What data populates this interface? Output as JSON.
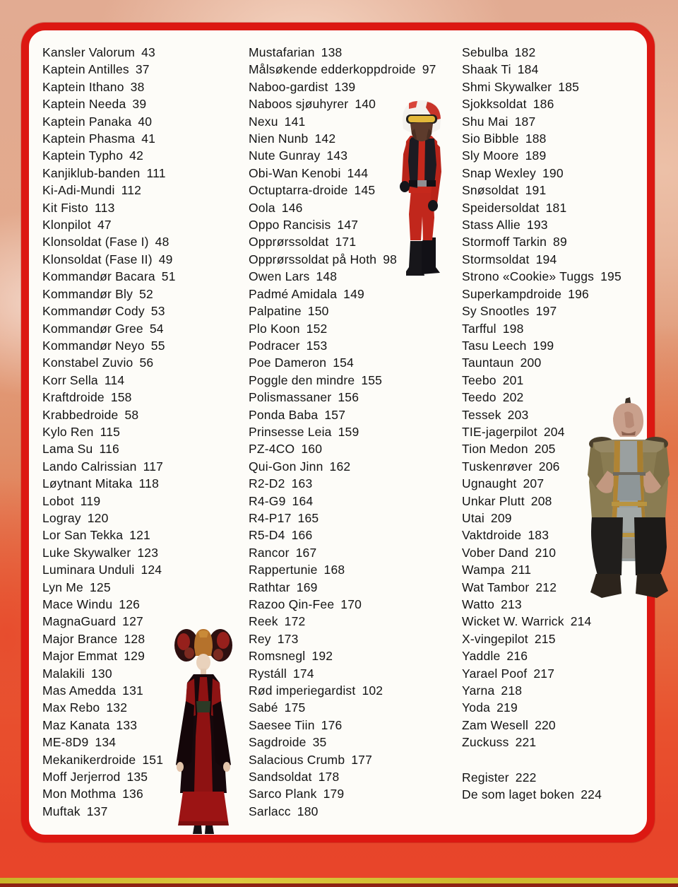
{
  "page": {
    "description": "Norwegian Star Wars encyclopedia index page",
    "colors": {
      "frame_red": "#dc1812",
      "paper": "#fdfcf8",
      "text": "#141414",
      "backdrop_top": "#e2ab92",
      "backdrop_bottom": "#e8452a",
      "bottom_stripe_yellow": "#d4bf32",
      "bottom_stripe_maroon": "#8e2214"
    }
  },
  "figures": [
    {
      "name": "rebel-pilot-red-flightsuit"
    },
    {
      "name": "queen-amidala-red-black-gown"
    },
    {
      "name": "unkar-plutt-bulky-alien"
    }
  ],
  "index": {
    "columns": [
      {
        "entries": [
          {
            "name": "Kansler Valorum",
            "page": "43"
          },
          {
            "name": "Kaptein Antilles",
            "page": "37"
          },
          {
            "name": "Kaptein Ithano",
            "page": "38"
          },
          {
            "name": "Kaptein Needa",
            "page": "39"
          },
          {
            "name": "Kaptein Panaka",
            "page": "40"
          },
          {
            "name": "Kaptein Phasma",
            "page": "41"
          },
          {
            "name": "Kaptein Typho",
            "page": "42"
          },
          {
            "name": "Kanjiklub-banden",
            "page": "111"
          },
          {
            "name": "Ki-Adi-Mundi",
            "page": "112"
          },
          {
            "name": "Kit Fisto",
            "page": "113"
          },
          {
            "name": "Klonpilot",
            "page": "47"
          },
          {
            "name": "Klonsoldat (Fase I)",
            "page": "48"
          },
          {
            "name": "Klonsoldat (Fase II)",
            "page": "49"
          },
          {
            "name": "Kommandør Bacara",
            "page": "51"
          },
          {
            "name": "Kommandør Bly",
            "page": "52"
          },
          {
            "name": "Kommandør Cody",
            "page": "53"
          },
          {
            "name": "Kommandør Gree",
            "page": "54"
          },
          {
            "name": "Kommandør Neyo",
            "page": "55"
          },
          {
            "name": "Konstabel Zuvio",
            "page": "56"
          },
          {
            "name": "Korr Sella",
            "page": "114"
          },
          {
            "name": "Kraftdroide",
            "page": "158"
          },
          {
            "name": "Krabbedroide",
            "page": "58"
          },
          {
            "name": "Kylo Ren",
            "page": "115"
          },
          {
            "name": "Lama Su",
            "page": "116"
          },
          {
            "name": "Lando Calrissian",
            "page": "117"
          },
          {
            "name": "Løytnant Mitaka",
            "page": "118"
          },
          {
            "name": "Lobot",
            "page": "119"
          },
          {
            "name": "Logray",
            "page": "120"
          },
          {
            "name": "Lor San Tekka",
            "page": "121"
          },
          {
            "name": "Luke Skywalker",
            "page": "123"
          },
          {
            "name": "Luminara Unduli",
            "page": "124"
          },
          {
            "name": "Lyn Me",
            "page": "125"
          },
          {
            "name": "Mace Windu",
            "page": "126"
          },
          {
            "name": "MagnaGuard",
            "page": "127"
          },
          {
            "name": "Major Brance",
            "page": "128"
          },
          {
            "name": "Major Emmat",
            "page": "129"
          },
          {
            "name": "Malakili",
            "page": "130"
          },
          {
            "name": "Mas Amedda",
            "page": "131"
          },
          {
            "name": "Max Rebo",
            "page": "132"
          },
          {
            "name": "Maz Kanata",
            "page": "133"
          },
          {
            "name": "ME-8D9",
            "page": "134"
          },
          {
            "name": "Mekanikerdroide",
            "page": "151"
          },
          {
            "name": "Moff Jerjerrod",
            "page": "135"
          },
          {
            "name": "Mon Mothma",
            "page": "136"
          },
          {
            "name": "Muftak",
            "page": "137"
          }
        ]
      },
      {
        "entries": [
          {
            "name": "Mustafarian",
            "page": "138"
          },
          {
            "name": "Målsøkende edderkoppdroide",
            "page": "97"
          },
          {
            "name": "Naboo-gardist",
            "page": "139"
          },
          {
            "name": "Naboos sjøuhyrer",
            "page": "140"
          },
          {
            "name": "Nexu",
            "page": "141"
          },
          {
            "name": "Nien Nunb",
            "page": "142"
          },
          {
            "name": "Nute Gunray",
            "page": "143"
          },
          {
            "name": "Obi-Wan Kenobi",
            "page": "144"
          },
          {
            "name": "Octuptarra-droide",
            "page": "145"
          },
          {
            "name": "Oola",
            "page": "146"
          },
          {
            "name": "Oppo Rancisis",
            "page": "147"
          },
          {
            "name": "Opprørssoldat",
            "page": "171"
          },
          {
            "name": "Opprørssoldat på Hoth",
            "page": "98"
          },
          {
            "name": "Owen Lars",
            "page": "148"
          },
          {
            "name": "Padmé Amidala",
            "page": "149"
          },
          {
            "name": "Palpatine",
            "page": "150"
          },
          {
            "name": "Plo Koon",
            "page": "152"
          },
          {
            "name": "Podracer",
            "page": "153"
          },
          {
            "name": "Poe Dameron",
            "page": "154"
          },
          {
            "name": "Poggle den mindre",
            "page": "155"
          },
          {
            "name": "Polismassaner",
            "page": "156"
          },
          {
            "name": "Ponda Baba",
            "page": "157"
          },
          {
            "name": "Prinsesse Leia",
            "page": "159"
          },
          {
            "name": "PZ-4CO",
            "page": "160"
          },
          {
            "name": "Qui-Gon Jinn",
            "page": "162"
          },
          {
            "name": "R2-D2",
            "page": "163"
          },
          {
            "name": "R4-G9",
            "page": "164"
          },
          {
            "name": "R4-P17",
            "page": "165"
          },
          {
            "name": "R5-D4",
            "page": "166"
          },
          {
            "name": "Rancor",
            "page": "167"
          },
          {
            "name": "Rappertunie",
            "page": "168"
          },
          {
            "name": "Rathtar",
            "page": "169"
          },
          {
            "name": "Razoo Qin-Fee",
            "page": "170"
          },
          {
            "name": "Reek",
            "page": "172"
          },
          {
            "name": "Rey",
            "page": "173"
          },
          {
            "name": "Romsnegl",
            "page": "192"
          },
          {
            "name": "Rystáll",
            "page": "174"
          },
          {
            "name": "Rød imperiegardist",
            "page": "102"
          },
          {
            "name": "Sabé",
            "page": "175"
          },
          {
            "name": "Saesee Tiin",
            "page": "176"
          },
          {
            "name": "Sagdroide",
            "page": "35"
          },
          {
            "name": "Salacious Crumb",
            "page": "177"
          },
          {
            "name": "Sandsoldat",
            "page": "178"
          },
          {
            "name": "Sarco Plank",
            "page": "179"
          },
          {
            "name": "Sarlacc",
            "page": "180"
          }
        ]
      },
      {
        "entries": [
          {
            "name": "Sebulba",
            "page": "182"
          },
          {
            "name": "Shaak Ti",
            "page": "184"
          },
          {
            "name": "Shmi Skywalker",
            "page": "185"
          },
          {
            "name": "Sjokksoldat",
            "page": "186"
          },
          {
            "name": "Shu Mai",
            "page": "187"
          },
          {
            "name": "Sio Bibble",
            "page": "188"
          },
          {
            "name": "Sly Moore",
            "page": "189"
          },
          {
            "name": "Snap Wexley",
            "page": "190"
          },
          {
            "name": "Snøsoldat",
            "page": "191"
          },
          {
            "name": "Speidersoldat",
            "page": "181"
          },
          {
            "name": "Stass Allie",
            "page": "193"
          },
          {
            "name": "Stormoff Tarkin",
            "page": "89"
          },
          {
            "name": "Stormsoldat",
            "page": "194"
          },
          {
            "name": "Strono «Cookie» Tuggs",
            "page": "195"
          },
          {
            "name": "Superkampdroide",
            "page": "196"
          },
          {
            "name": "Sy Snootles",
            "page": "197"
          },
          {
            "name": "Tarfful",
            "page": "198"
          },
          {
            "name": "Tasu Leech",
            "page": "199"
          },
          {
            "name": "Tauntaun",
            "page": "200"
          },
          {
            "name": "Teebo",
            "page": "201"
          },
          {
            "name": "Teedo",
            "page": "202"
          },
          {
            "name": "Tessek",
            "page": "203"
          },
          {
            "name": "TIE-jagerpilot",
            "page": "204"
          },
          {
            "name": "Tion Medon",
            "page": "205"
          },
          {
            "name": "Tuskenrøver",
            "page": "206"
          },
          {
            "name": "Ugnaught",
            "page": "207"
          },
          {
            "name": "Unkar Plutt",
            "page": "208"
          },
          {
            "name": "Utai",
            "page": "209"
          },
          {
            "name": "Vaktdroide",
            "page": "183"
          },
          {
            "name": "Vober Dand",
            "page": "210"
          },
          {
            "name": "Wampa",
            "page": "211"
          },
          {
            "name": "Wat Tambor",
            "page": "212"
          },
          {
            "name": "Watto",
            "page": "213"
          },
          {
            "name": "Wicket W. Warrick",
            "page": "214"
          },
          {
            "name": "X-vingepilot",
            "page": "215"
          },
          {
            "name": "Yaddle",
            "page": "216"
          },
          {
            "name": "Yarael Poof",
            "page": "217"
          },
          {
            "name": "Yarna",
            "page": "218"
          },
          {
            "name": "Yoda",
            "page": "219"
          },
          {
            "name": "Zam Wesell",
            "page": "220"
          },
          {
            "name": "Zuckuss",
            "page": "221"
          },
          {
            "name": "Register",
            "page": "222",
            "gap_before": true
          },
          {
            "name": "De som laget boken",
            "page": "224"
          }
        ]
      }
    ]
  }
}
